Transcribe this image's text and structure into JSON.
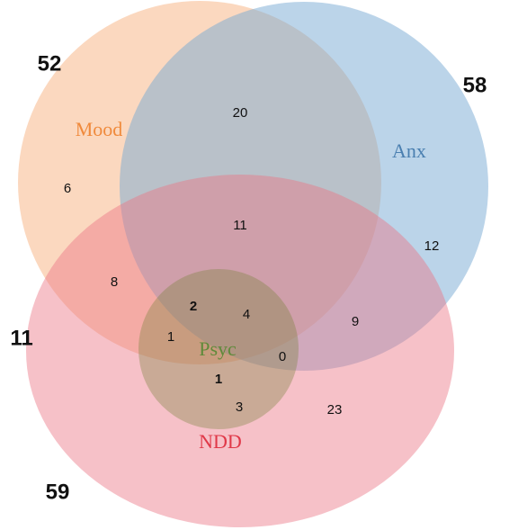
{
  "sets": [
    {
      "label": "Mood",
      "total": 52
    },
    {
      "label": "Anx",
      "total": 58
    },
    {
      "label": "Psyc",
      "total": 11
    },
    {
      "label": "NDD",
      "total": 59
    }
  ],
  "regions": [
    {
      "value": 20
    },
    {
      "value": 6
    },
    {
      "value": 11
    },
    {
      "value": 12
    },
    {
      "value": 8
    },
    {
      "value": 2,
      "color": "#f2ea12"
    },
    {
      "value": 4
    },
    {
      "value": 1
    },
    {
      "value": 9
    },
    {
      "value": 0
    },
    {
      "value": 1,
      "color": "#f2ea12"
    },
    {
      "value": 3
    },
    {
      "value": 23
    }
  ]
}
